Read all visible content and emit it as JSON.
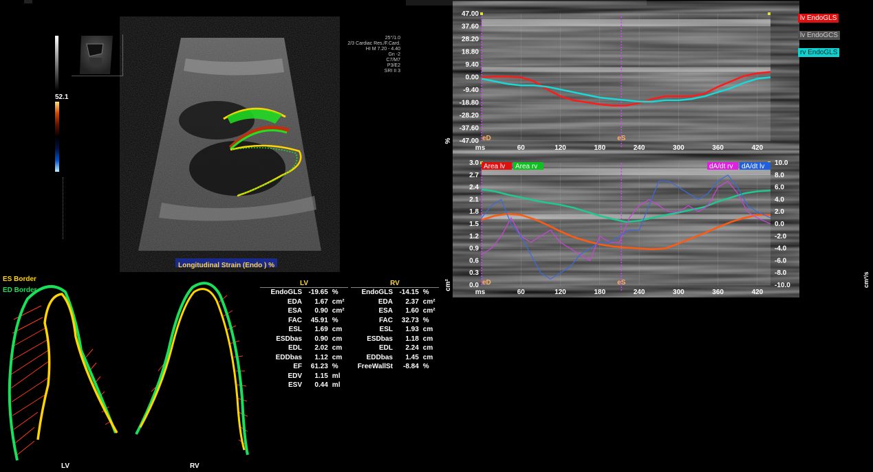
{
  "top_title": "",
  "probe": {
    "line1": "",
    "line2": ""
  },
  "imaging_params": [
    "25°/1.0",
    "2/3 Cardiac Res./F.Card.",
    "HI M  7.20 - 4.40",
    "Gn  -2",
    "C7/M7",
    "P3/E2",
    "SRI II 3"
  ],
  "colorbar_value": "52.1",
  "image_caption": "Longitudinal Strain (Endo ) %",
  "border_legend": {
    "es": "ES Border",
    "ed": "ED Border",
    "es_color": "#ffd400",
    "ed_color": "#19e05a"
  },
  "contour_labels": {
    "lv": "LV",
    "rv": "RV"
  },
  "lv_table": {
    "header": "LV",
    "rows": [
      {
        "name": "EndoGLS",
        "value": "-19.65",
        "unit": "%"
      },
      {
        "name": "EDA",
        "value": "1.67",
        "unit": "cm²"
      },
      {
        "name": "ESA",
        "value": "0.90",
        "unit": "cm²"
      },
      {
        "name": "FAC",
        "value": "45.91",
        "unit": "%"
      },
      {
        "name": "ESL",
        "value": "1.69",
        "unit": "cm"
      },
      {
        "name": "ESDbas",
        "value": "0.90",
        "unit": "cm"
      },
      {
        "name": "EDL",
        "value": "2.02",
        "unit": "cm"
      },
      {
        "name": "EDDbas",
        "value": "1.12",
        "unit": "cm"
      },
      {
        "name": "EF",
        "value": "61.23",
        "unit": "%"
      },
      {
        "name": "EDV",
        "value": "1.15",
        "unit": "ml"
      },
      {
        "name": "ESV",
        "value": "0.44",
        "unit": "ml"
      }
    ]
  },
  "rv_table": {
    "header": "RV",
    "rows": [
      {
        "name": "EndoGLS",
        "value": "-14.15",
        "unit": "%"
      },
      {
        "name": "EDA",
        "value": "2.37",
        "unit": "cm²"
      },
      {
        "name": "ESA",
        "value": "1.60",
        "unit": "cm²"
      },
      {
        "name": "FAC",
        "value": "32.73",
        "unit": "%"
      },
      {
        "name": "ESL",
        "value": "1.93",
        "unit": "cm"
      },
      {
        "name": "ESDbas",
        "value": "1.18",
        "unit": "cm"
      },
      {
        "name": "EDL",
        "value": "2.24",
        "unit": "cm"
      },
      {
        "name": "EDDbas",
        "value": "1.45",
        "unit": "cm"
      },
      {
        "name": "FreeWallSt",
        "value": "-8.84",
        "unit": "%"
      }
    ]
  },
  "chart_data": [
    {
      "type": "line",
      "yticks": [
        "47.00",
        "37.60",
        "28.20",
        "18.80",
        "9.40",
        "0.00",
        "-9.40",
        "-18.80",
        "-28.20",
        "-37.60",
        "-47.00"
      ],
      "ylim": [
        -47,
        47
      ],
      "xticks": [
        60,
        120,
        180,
        240,
        300,
        360,
        420
      ],
      "xlim": [
        0,
        440
      ],
      "x_unit": "ms",
      "y_unit": "%",
      "markers": {
        "ed": "eD",
        "es": "eS",
        "es_x": 213
      },
      "legend": [
        {
          "label": "lv EndoGLS",
          "bg": "#e01010",
          "fg": "#ffffff"
        },
        {
          "label": "lv EndoGCS",
          "bg": "#505050",
          "fg": "#cfcfcf"
        },
        {
          "label": "rv EndoGLS",
          "bg": "#10d0d0",
          "fg": "#002a2a"
        }
      ],
      "series": [
        {
          "name": "lv EndoGLS",
          "color": "#ff1a1a",
          "x": [
            0,
            20,
            40,
            60,
            80,
            100,
            120,
            140,
            160,
            180,
            200,
            220,
            240,
            260,
            280,
            300,
            320,
            340,
            360,
            380,
            400,
            420,
            440
          ],
          "y": [
            0,
            0.5,
            0.5,
            0,
            -3,
            -9,
            -14,
            -17,
            -18.5,
            -20,
            -21,
            -21,
            -19,
            -16,
            -14,
            -14,
            -14,
            -12,
            -7,
            -3,
            1,
            3,
            4
          ]
        },
        {
          "name": "rv EndoGLS",
          "color": "#1ad8d8",
          "x": [
            0,
            20,
            40,
            60,
            80,
            100,
            120,
            140,
            160,
            180,
            200,
            220,
            240,
            260,
            280,
            300,
            320,
            340,
            360,
            380,
            400,
            420,
            440
          ],
          "y": [
            -1,
            -3,
            -5,
            -6,
            -6,
            -7,
            -9,
            -11,
            -13,
            -15,
            -16,
            -17,
            -18,
            -18,
            -17,
            -17,
            -16,
            -14,
            -11,
            -8,
            -4,
            -1,
            0
          ]
        }
      ]
    },
    {
      "type": "line",
      "yticks_left": [
        "3.0",
        "2.7",
        "2.4",
        "2.1",
        "1.8",
        "1.5",
        "1.2",
        "0.9",
        "0.6",
        "0.3",
        "0.0"
      ],
      "yticks_right": [
        "10.0",
        "8.0",
        "6.0",
        "4.0",
        "2.0",
        "0.0",
        "-2.0",
        "-4.0",
        "-6.0",
        "-8.0",
        "-10.0"
      ],
      "ylim_left": [
        0,
        3
      ],
      "ylim_right": [
        -10,
        10
      ],
      "xticks": [
        60,
        120,
        180,
        240,
        300,
        360,
        420
      ],
      "xlim": [
        0,
        440
      ],
      "x_unit": "ms",
      "y_unit_left": "cm²",
      "y_unit_right": "cm²/s",
      "markers": {
        "ed": "eD",
        "es": "eS",
        "es_x": 213
      },
      "legend_left": [
        {
          "label": "Area  lv",
          "bg": "#e01010",
          "fg": "#ffffff"
        },
        {
          "label": "Area  rv",
          "bg": "#10c020",
          "fg": "#ffffff"
        }
      ],
      "legend_right": [
        {
          "label": "dA/dt rv",
          "bg": "#e020e0",
          "fg": "#ffffff"
        },
        {
          "label": "dA/dt lv",
          "bg": "#2060e0",
          "fg": "#ffffff"
        }
      ],
      "series": [
        {
          "name": "Area  lv",
          "axis": "left",
          "color": "#ff5a10",
          "x": [
            0,
            20,
            40,
            60,
            80,
            100,
            120,
            140,
            160,
            180,
            200,
            220,
            240,
            260,
            280,
            300,
            320,
            340,
            360,
            380,
            400,
            420,
            440
          ],
          "y": [
            1.6,
            1.7,
            1.75,
            1.72,
            1.62,
            1.48,
            1.32,
            1.18,
            1.08,
            1.0,
            0.95,
            0.92,
            0.9,
            0.88,
            0.9,
            1.02,
            1.15,
            1.28,
            1.42,
            1.55,
            1.65,
            1.72,
            1.72
          ]
        },
        {
          "name": "Area  rv",
          "axis": "left",
          "color": "#20c890",
          "x": [
            0,
            20,
            40,
            60,
            80,
            100,
            120,
            140,
            160,
            180,
            200,
            220,
            240,
            260,
            280,
            300,
            320,
            340,
            360,
            380,
            400,
            420,
            440
          ],
          "y": [
            2.35,
            2.3,
            2.22,
            2.15,
            2.08,
            2.02,
            1.97,
            1.9,
            1.8,
            1.7,
            1.62,
            1.55,
            1.58,
            1.65,
            1.72,
            1.78,
            1.85,
            1.92,
            2.05,
            2.15,
            2.25,
            2.3,
            2.32
          ]
        },
        {
          "name": "dA/dt rv",
          "axis": "right",
          "color": "#d040e0",
          "x": [
            0,
            15,
            30,
            45,
            60,
            75,
            90,
            105,
            120,
            135,
            150,
            165,
            180,
            195,
            210,
            225,
            240,
            255,
            270,
            285,
            300,
            315,
            330,
            345,
            360,
            375,
            390,
            405,
            420,
            440
          ],
          "y": [
            -5,
            -4,
            -2,
            1,
            -2,
            -3,
            -2,
            -1,
            -3,
            -4,
            -5,
            -6,
            -2,
            -3,
            -3,
            1,
            3,
            4,
            3,
            2,
            2,
            3,
            2,
            3,
            6,
            7,
            5,
            2,
            1,
            0
          ]
        },
        {
          "name": "dA/dt lv",
          "axis": "right",
          "color": "#3a6ae0",
          "x": [
            0,
            15,
            30,
            45,
            60,
            75,
            90,
            105,
            120,
            135,
            150,
            165,
            180,
            195,
            210,
            225,
            240,
            255,
            270,
            285,
            300,
            315,
            330,
            345,
            360,
            375,
            390,
            405,
            420,
            440
          ],
          "y": [
            1,
            3,
            4,
            0,
            -2,
            -5,
            -8,
            -9,
            -8,
            -7,
            -5,
            -4,
            -3,
            -3,
            -2,
            -1,
            -1,
            3,
            7,
            7,
            6,
            5,
            4,
            5,
            7,
            8,
            6,
            3,
            2,
            1
          ]
        }
      ]
    }
  ]
}
